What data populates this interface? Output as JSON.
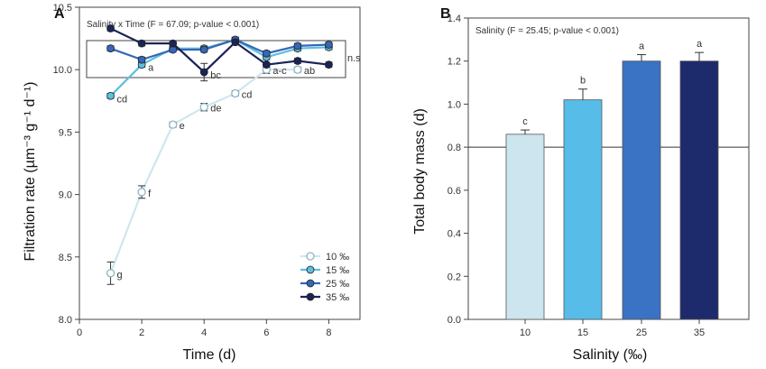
{
  "chart_data": [
    {
      "panel": "A",
      "type": "line",
      "annotation": "Salinity x Time (F = 67.09; p-value < 0.001)",
      "xlabel": "Time (d)",
      "ylabel": "Filtration rate (µm⁻³ g⁻¹ d⁻¹)",
      "xlim": [
        0,
        9
      ],
      "ylim": [
        8.0,
        10.5
      ],
      "xticks": [
        0,
        2,
        4,
        6,
        8
      ],
      "yticks": [
        8.0,
        8.5,
        9.0,
        9.5,
        10.0,
        10.5
      ],
      "xtick_labels": [
        "0",
        "2",
        "4",
        "6",
        "8"
      ],
      "ytick_labels": [
        "8.0",
        "8.5",
        "9.0",
        "9.5",
        "10.0",
        "10.5"
      ],
      "ns_label": "n.s",
      "legend_position": "bottom-right",
      "series": [
        {
          "name": "10 ‰",
          "color": "#cfe6ef",
          "marker": "open",
          "x": [
            1,
            2,
            3,
            4,
            5,
            6,
            7
          ],
          "y": [
            8.37,
            9.02,
            9.56,
            9.7,
            9.81,
            10.0,
            10.0
          ],
          "err": [
            0.09,
            0.05,
            0.02,
            0.03,
            0.02,
            0.03,
            0.02
          ],
          "labels": [
            "g",
            "f",
            "e",
            "de",
            "cd",
            "a-c",
            "ab"
          ]
        },
        {
          "name": "15 ‰",
          "color": "#5bbfe0",
          "marker": "filled",
          "x": [
            1,
            2,
            3,
            4,
            5,
            6,
            7,
            8
          ],
          "y": [
            9.79,
            10.04,
            10.17,
            10.17,
            10.24,
            10.1,
            10.17,
            10.18
          ],
          "err": [
            0.02,
            0.02,
            0.02,
            0.02,
            0.02,
            0.02,
            0.02,
            0.02
          ],
          "labels": [
            "cd",
            "a",
            "",
            "",
            "",
            "",
            "",
            ""
          ]
        },
        {
          "name": "25 ‰",
          "color": "#3566b8",
          "marker": "filled",
          "x": [
            1,
            2,
            3,
            4,
            5,
            6,
            7,
            8
          ],
          "y": [
            10.17,
            10.08,
            10.16,
            10.16,
            10.24,
            10.13,
            10.19,
            10.2
          ],
          "err": [
            0.02,
            0.02,
            0.02,
            0.02,
            0.02,
            0.02,
            0.02,
            0.02
          ],
          "labels": [
            "",
            "",
            "",
            "",
            "",
            "",
            "",
            ""
          ]
        },
        {
          "name": "35 ‰",
          "color": "#1b2357",
          "marker": "filled",
          "x": [
            1,
            2,
            3,
            4,
            5,
            6,
            7,
            8
          ],
          "y": [
            10.33,
            10.21,
            10.21,
            9.98,
            10.22,
            10.04,
            10.07,
            10.04
          ],
          "err": [
            0.02,
            0.02,
            0.02,
            0.07,
            0.02,
            0.02,
            0.02,
            0.02
          ],
          "labels": [
            "",
            "",
            "",
            "bc",
            "",
            "",
            "",
            ""
          ]
        }
      ]
    },
    {
      "panel": "B",
      "type": "bar",
      "annotation": "Salinity (F = 25.45; p-value < 0.001)",
      "xlabel": "Salinity (‰)",
      "ylabel": "Total body mass (d)",
      "ylim": [
        0,
        1.4
      ],
      "yticks": [
        0,
        0.2,
        0.4,
        0.6,
        0.8,
        1.0,
        1.2,
        1.4
      ],
      "ytick_labels": [
        "0.0",
        "0.2",
        "0.4",
        "0.6",
        "0.8",
        "1.0",
        "1.2",
        "1.4"
      ],
      "reference_line": 0.8,
      "categories": [
        "10",
        "15",
        "25",
        "35"
      ],
      "values": [
        0.86,
        1.02,
        1.2,
        1.2
      ],
      "err": [
        0.02,
        0.05,
        0.03,
        0.04
      ],
      "labels": [
        "c",
        "b",
        "a",
        "a"
      ],
      "colors": [
        "#cde5ee",
        "#57bde8",
        "#3a72c4",
        "#1d2a6b"
      ]
    }
  ]
}
